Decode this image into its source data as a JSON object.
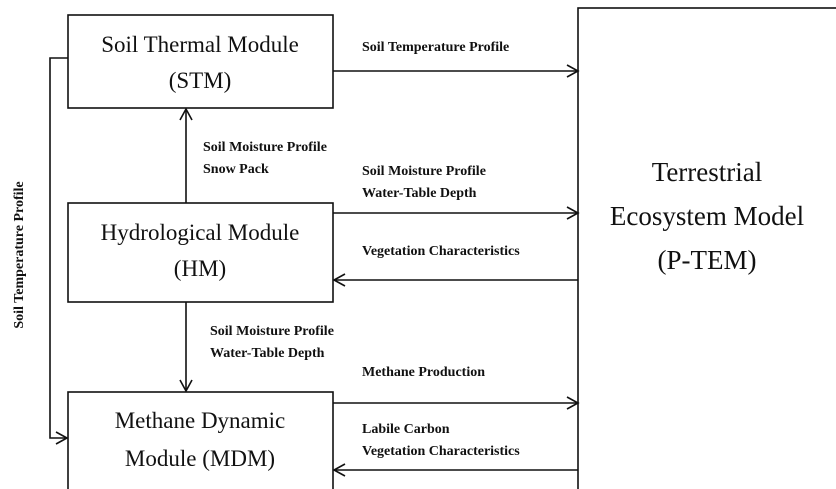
{
  "nodes": [
    {
      "lines": [
        "Soil Thermal Module",
        "(STM)"
      ]
    },
    {
      "lines": [
        "Hydrological Module",
        "(HM)"
      ]
    },
    {
      "lines": [
        "Methane Dynamic",
        "Module (MDM)"
      ]
    },
    {
      "lines": [
        "Terrestrial",
        "Ecosystem Model",
        "(P-TEM)"
      ]
    }
  ],
  "edges": [
    {
      "lines": [
        "Soil Temperature Profile"
      ]
    },
    {
      "lines": [
        "Soil Moisture Profile",
        "Snow Pack"
      ]
    },
    {
      "lines": [
        "Soil Moisture Profile",
        "Water-Table Depth"
      ]
    },
    {
      "lines": [
        "Vegetation Characteristics"
      ]
    },
    {
      "lines": [
        "Soil Moisture Profile",
        "Water-Table Depth"
      ]
    },
    {
      "lines": [
        "Methane Production"
      ]
    },
    {
      "lines": [
        "Labile Carbon",
        "Vegetation Characteristics"
      ]
    },
    {
      "lines": [
        "Soil Temperature Profile"
      ]
    }
  ]
}
